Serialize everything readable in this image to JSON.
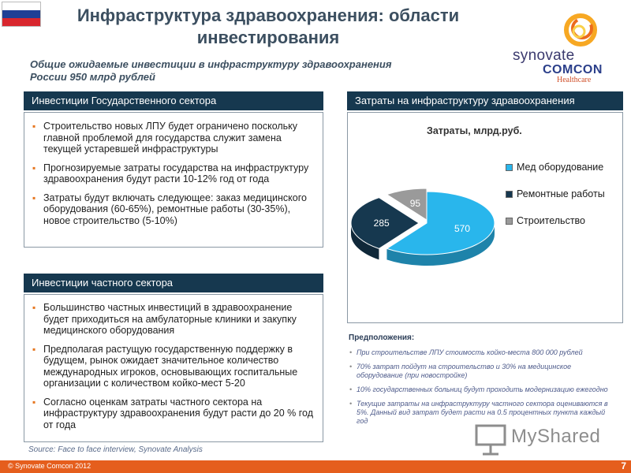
{
  "header": {
    "title_line1": "Инфраструктура здравоохранения: области",
    "title_line2": "инвестирования",
    "subtitle_line1": "Общие ожидаемые инвестиции  в инфраструктуру  здравоохранения",
    "subtitle_line2": "России  950  млрд рублей"
  },
  "logo": {
    "word1": "synovate",
    "word2": "COMCON",
    "word3": "Healthcare",
    "ring_colors": [
      "#f7a823",
      "#ec6b1d",
      "#f9d14a"
    ]
  },
  "flag_colors": [
    "#ffffff",
    "#1f3f95",
    "#d8262e"
  ],
  "public_sector": {
    "heading": "Инвестиции Государственного сектора",
    "bullets": [
      "Строительство новых ЛПУ будет ограничено поскольку главной проблемой для государства служит замена текущей устаревшей инфраструктуры",
      "Прогнозируемые затраты государства на инфраструктуру здравоохранения  будут расти 10-12% год от года",
      "Затраты будут включать следующее: заказ медицинского оборудования (60-65%), ремонтные работы (30-35%), новое строительство (5-10%)"
    ]
  },
  "private_sector": {
    "heading": "Инвестиции частного сектора",
    "bullets": [
      "Большинство частных инвестиций в здравоохранение будет приходиться на амбулаторные клиники и закупку медицинского оборудования",
      "Предполагая растущую государственную поддержку в будущем, рынок ожидает значительное количество международных игроков, основывающих госпитальные организации с количеством койко-мест 5-20",
      "Согласно оценкам затраты частного сектора на инфраструктуру здравоохранения будут расти до 20 % год от года"
    ]
  },
  "chart_panel": {
    "heading": "Затраты на инфраструктуру здравоохранения"
  },
  "chart_data": {
    "type": "pie",
    "title": "Затраты, млрд.руб.",
    "legend_position": "right",
    "series": [
      {
        "name": "Мед оборудование",
        "value": 570,
        "color": "#29b6ec"
      },
      {
        "name": "Ремонтные работы",
        "value": 285,
        "color": "#16384f"
      },
      {
        "name": "Строительство",
        "value": 95,
        "color": "#9a9a9a"
      }
    ]
  },
  "assumptions": {
    "title": "Предположения:",
    "items": [
      "При строительстве ЛПУ стоимость койко-места 800 000 рублей",
      "70% затрат пойдут на строительство и 30% на медицинское оборудование (при новостройке)",
      "10% государственных больниц будут проходить модернизацию ежегодно",
      "Текущие затраты на инфраструктуру частного сектора оцениваются в 5%. Данный вид затрат будет расти на 0.5 процентных пункта каждый год"
    ]
  },
  "source": "Source: Face to face interview, Synovate Analysis",
  "footer": {
    "copyright": "© Synovate Comcon 2012",
    "page": "7"
  },
  "watermark": "MyShared"
}
